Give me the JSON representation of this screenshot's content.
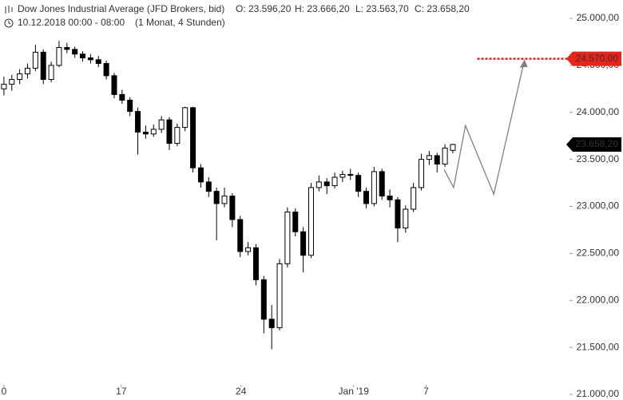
{
  "chart_data": {
    "type": "candlestick",
    "title": "Dow Jones Industrial Average (JFD Brokers, bid)",
    "ohlc_labels": [
      "O: 23.596,20",
      "H: 23.666,20",
      "L: 23.563,70",
      "C: 23.658,20"
    ],
    "subtitle": "10.12.2018 00:00 - 08:00",
    "period": "(1 Monat, 4 Stunden)",
    "candles": [
      [
        24250,
        24380,
        24180,
        24300
      ],
      [
        24300,
        24400,
        24230,
        24350
      ],
      [
        24350,
        24460,
        24300,
        24410
      ],
      [
        24410,
        24520,
        24360,
        24470
      ],
      [
        24470,
        24720,
        24440,
        24640
      ],
      [
        24640,
        24670,
        24300,
        24350
      ],
      [
        24350,
        24540,
        24320,
        24500
      ],
      [
        24500,
        24760,
        24480,
        24690
      ],
      [
        24690,
        24740,
        24630,
        24670
      ],
      [
        24670,
        24700,
        24580,
        24620
      ],
      [
        24620,
        24650,
        24540,
        24580
      ],
      [
        24580,
        24620,
        24520,
        24560
      ],
      [
        24560,
        24600,
        24480,
        24520
      ],
      [
        24520,
        24550,
        24350,
        24390
      ],
      [
        24390,
        24420,
        24150,
        24190
      ],
      [
        24190,
        24240,
        24090,
        24130
      ],
      [
        24130,
        24160,
        23960,
        24010
      ],
      [
        24010,
        24050,
        23550,
        23790
      ],
      [
        23790,
        23860,
        23720,
        23770
      ],
      [
        23770,
        23870,
        23740,
        23820
      ],
      [
        23820,
        23960,
        23780,
        23920
      ],
      [
        23920,
        23950,
        23600,
        23670
      ],
      [
        23670,
        23880,
        23640,
        23840
      ],
      [
        23840,
        24060,
        23800,
        24050
      ],
      [
        24050,
        24060,
        23360,
        23410
      ],
      [
        23410,
        23450,
        23200,
        23260
      ],
      [
        23260,
        23310,
        23100,
        23160
      ],
      [
        23160,
        23200,
        22640,
        23030
      ],
      [
        23030,
        23200,
        22990,
        23110
      ],
      [
        23110,
        23140,
        22780,
        22860
      ],
      [
        22860,
        22900,
        22460,
        22520
      ],
      [
        22520,
        22620,
        22480,
        22560
      ],
      [
        22560,
        22600,
        22160,
        22220
      ],
      [
        22220,
        22260,
        21650,
        21800
      ],
      [
        21800,
        21950,
        21480,
        21710
      ],
      [
        21710,
        22440,
        21680,
        22390
      ],
      [
        22390,
        22990,
        22350,
        22940
      ],
      [
        22940,
        22980,
        22680,
        22730
      ],
      [
        22730,
        22780,
        22300,
        22480
      ],
      [
        22480,
        23250,
        22450,
        23200
      ],
      [
        23200,
        23330,
        23160,
        23260
      ],
      [
        23260,
        23300,
        23130,
        23220
      ],
      [
        23220,
        23360,
        23190,
        23310
      ],
      [
        23310,
        23380,
        23260,
        23340
      ],
      [
        23340,
        23400,
        23280,
        23330
      ],
      [
        23330,
        23360,
        23100,
        23160
      ],
      [
        23160,
        23200,
        22980,
        23030
      ],
      [
        23030,
        23420,
        23000,
        23370
      ],
      [
        23370,
        23400,
        23070,
        23110
      ],
      [
        23110,
        23180,
        22990,
        23070
      ],
      [
        23070,
        23100,
        22620,
        22770
      ],
      [
        22770,
        23010,
        22720,
        22970
      ],
      [
        22970,
        23250,
        22940,
        23200
      ],
      [
        23200,
        23560,
        23170,
        23500
      ],
      [
        23500,
        23590,
        23440,
        23540
      ],
      [
        23540,
        23570,
        23360,
        23450
      ],
      [
        23450,
        23660,
        23420,
        23620
      ],
      [
        23596.2,
        23666.2,
        23563.7,
        23658.2
      ]
    ],
    "up_color": "#ffffff",
    "down_color": "#000000",
    "wick_color": "#000000",
    "xlim": [
      -0.5,
      71
    ],
    "xticks": [
      0,
      {
        "value": 14.9,
        "label": "17"
      },
      {
        "value": 30.1,
        "label": "24"
      },
      {
        "value": 44.4,
        "label": "Jan '19"
      },
      {
        "value": 53.6,
        "label": "7"
      }
    ],
    "ylim": [
      21000,
      25000
    ],
    "yticks": [
      {
        "value": 21000,
        "label": "21.000,00"
      },
      {
        "value": 21500,
        "label": "21.500,00"
      },
      {
        "value": 22000,
        "label": "22.000,00"
      },
      {
        "value": 22500,
        "label": "22.500,00"
      },
      {
        "value": 23000,
        "label": "23.000,00"
      },
      {
        "value": 23500,
        "label": "23.500,00"
      },
      {
        "value": 24000,
        "label": "24.000,00"
      },
      {
        "value": 24500,
        "label": "24.500,00"
      },
      {
        "value": 25000,
        "label": "25.000,00"
      }
    ],
    "projection": {
      "color": "#808080",
      "x": [
        55.9,
        57.1,
        58.6,
        62.2,
        66.1
      ],
      "values": [
        23390,
        23200,
        23860,
        23130,
        24560
      ]
    },
    "target": {
      "value": 24570,
      "label": "24.570,00",
      "x_start": 60.1,
      "color": "#e8231a"
    },
    "last_price": {
      "value": 23658.2,
      "label": "23.658,20",
      "color": "#000000"
    }
  }
}
